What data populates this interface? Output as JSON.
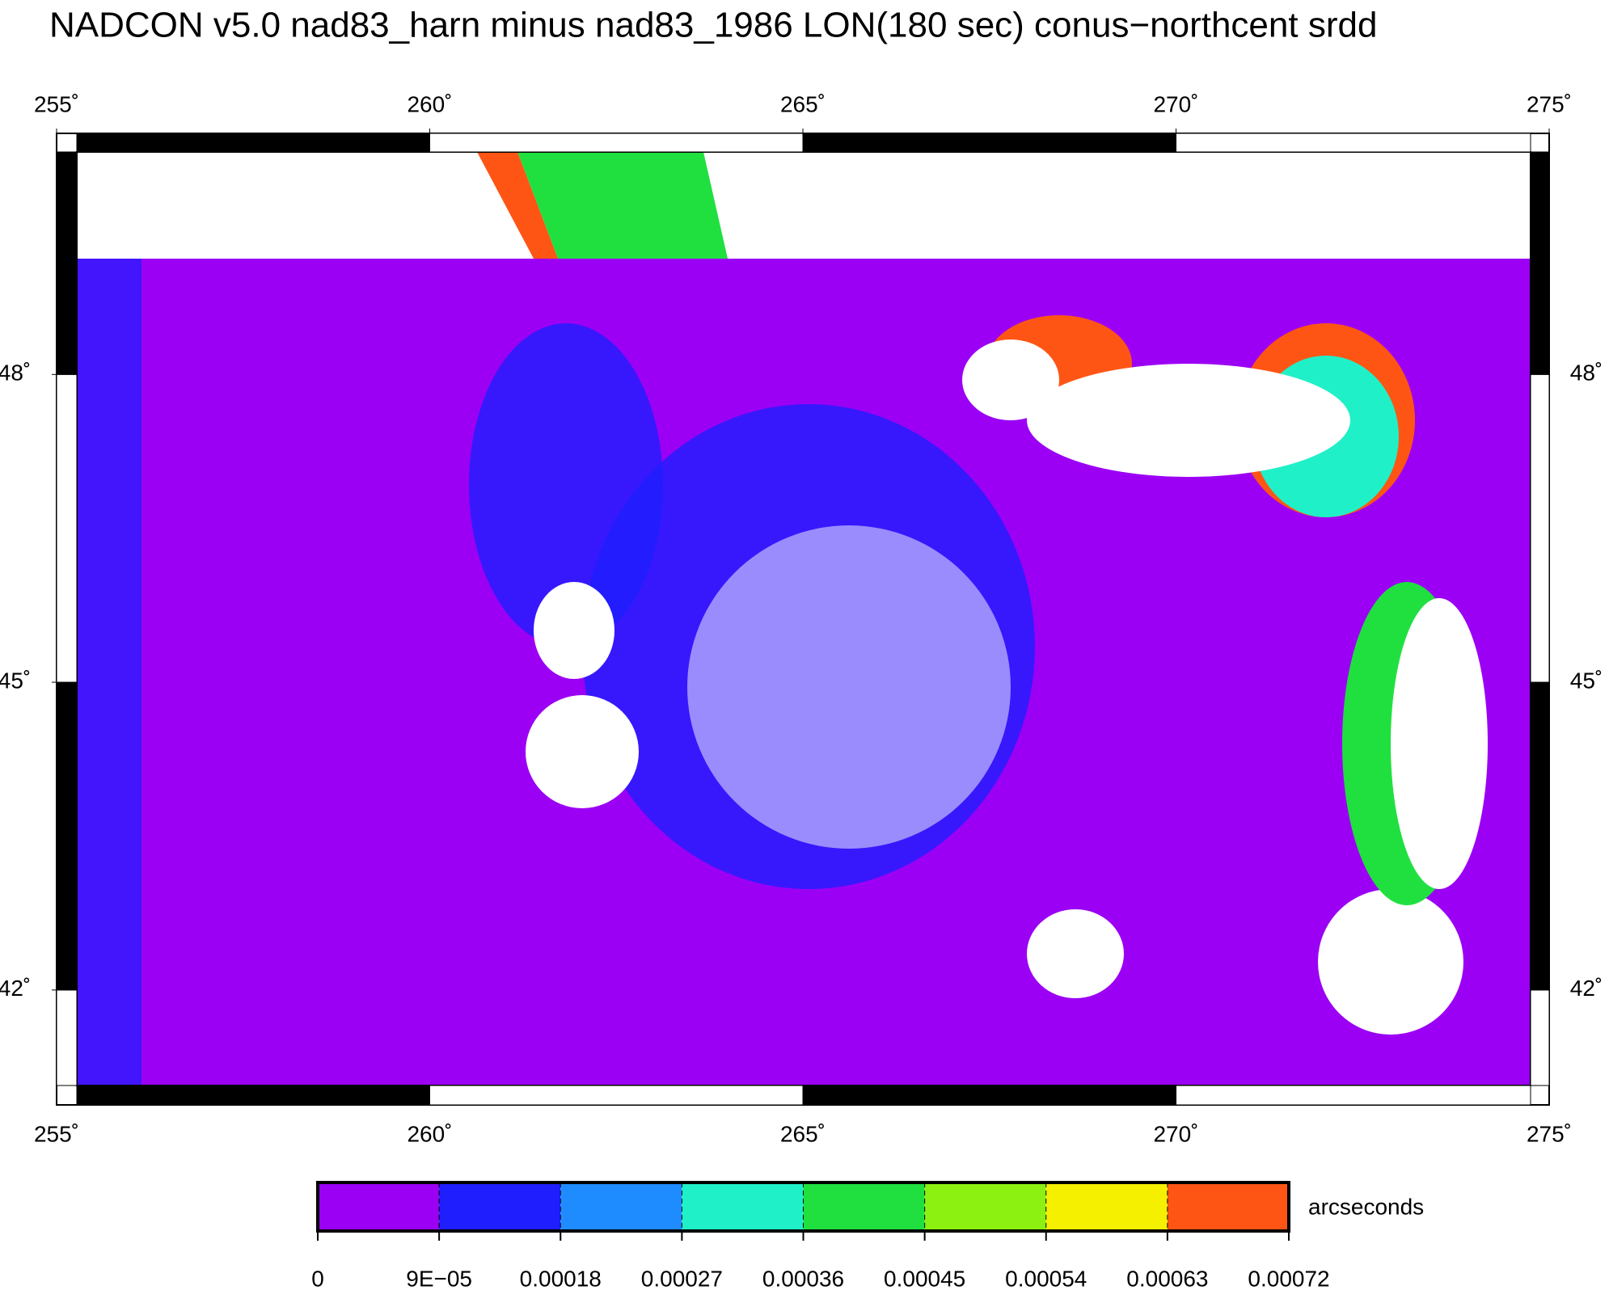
{
  "chart_data": {
    "type": "map",
    "title": "NADCON v5.0 nad83_harn minus nad83_1986 LON(180 sec) conus−northcent srdd",
    "xlim": [
      255,
      275
    ],
    "ylim": [
      40.88,
      50.35
    ],
    "xticks": [
      {
        "value": 255,
        "label": "255˚"
      },
      {
        "value": 260,
        "label": "260˚"
      },
      {
        "value": 265,
        "label": "265˚"
      },
      {
        "value": 270,
        "label": "270˚"
      },
      {
        "value": 275,
        "label": "275˚"
      }
    ],
    "yticks": [
      {
        "value": 42,
        "label": "42˚"
      },
      {
        "value": 45,
        "label": "45˚"
      },
      {
        "value": 48,
        "label": "48˚"
      }
    ],
    "colorbar": {
      "label": "arcseconds",
      "ticks": [
        0,
        {
          "value": 9e-05,
          "label": "9E−05"
        },
        0.00018,
        0.00027,
        0.00036,
        0.00045,
        0.00054,
        0.00063,
        0.00072
      ],
      "colors": [
        "#9b00f5",
        "#1e1eff",
        "#1e8cff",
        "#20f0c8",
        "#20e040",
        "#8cf010",
        "#f5f000",
        "#ff5514"
      ]
    }
  }
}
